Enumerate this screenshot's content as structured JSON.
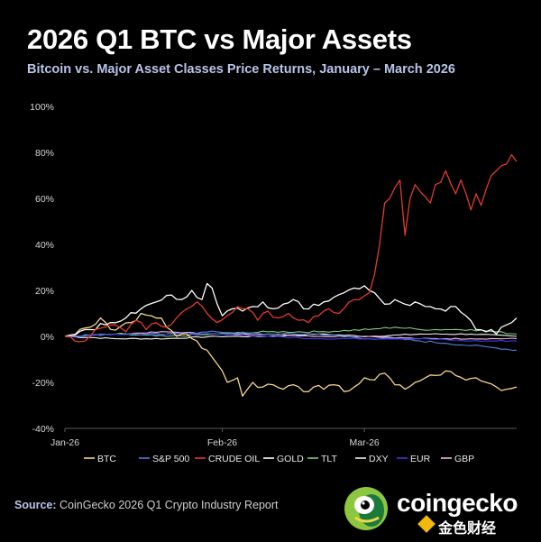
{
  "title": "2026 Q1 BTC vs Major Assets",
  "subtitle": "Bitcoin vs. Major Asset Classes Price Returns, January – March 2026",
  "source_label": "Source:",
  "source_text": "CoinGecko 2026 Q1 Crypto Industry Report",
  "brand": "coingecko",
  "watermark": "金色财经",
  "colors": {
    "background": "#000000",
    "subtitle": "#b8c4e8",
    "BTC": "#f7d58b",
    "S&P 500": "#4f7fd9",
    "CRUDE OIL": "#e23a2e",
    "GOLD": "#ffffff",
    "TLT": "#7ccf7a",
    "DXY": "#f2f2f2",
    "EUR": "#3a3adf",
    "GBP": "#f3b6e8"
  },
  "chart_data": {
    "type": "line",
    "title": "Bitcoin vs. Major Asset Classes Price Returns, January – March 2026",
    "xlabel": "",
    "ylabel": "",
    "x_tick_labels": [
      "Jan-26",
      "Feb-26",
      "Mar-26"
    ],
    "x_tick_index": [
      0,
      31,
      59
    ],
    "y_ticks": [
      100,
      80,
      60,
      40,
      20,
      0,
      -20,
      -40
    ],
    "y_tick_labels": [
      "100%",
      "80%",
      "60%",
      "40%",
      "20%",
      "0%",
      "-20%",
      "-40%"
    ],
    "ylim": [
      -40,
      100
    ],
    "n_points": 90,
    "legend_position": "bottom",
    "series": [
      {
        "name": "BTC",
        "anchors": [
          [
            0,
            0
          ],
          [
            5,
            4
          ],
          [
            7,
            8
          ],
          [
            9,
            3
          ],
          [
            13,
            6
          ],
          [
            15,
            10
          ],
          [
            17,
            9
          ],
          [
            19,
            8
          ],
          [
            22,
            0
          ],
          [
            24,
            1
          ],
          [
            26,
            -2
          ],
          [
            28,
            -6
          ],
          [
            30,
            -12
          ],
          [
            31,
            -15
          ],
          [
            32,
            -20
          ],
          [
            34,
            -18
          ],
          [
            35,
            -26
          ],
          [
            37,
            -20
          ],
          [
            39,
            -22
          ],
          [
            41,
            -21
          ],
          [
            43,
            -23
          ],
          [
            45,
            -21
          ],
          [
            47,
            -24
          ],
          [
            49,
            -22
          ],
          [
            51,
            -23
          ],
          [
            53,
            -21
          ],
          [
            55,
            -24
          ],
          [
            57,
            -22
          ],
          [
            59,
            -18
          ],
          [
            61,
            -19
          ],
          [
            63,
            -16
          ],
          [
            65,
            -21
          ],
          [
            67,
            -23
          ],
          [
            69,
            -20
          ],
          [
            71,
            -18
          ],
          [
            73,
            -17
          ],
          [
            75,
            -15
          ],
          [
            77,
            -17
          ],
          [
            79,
            -19
          ],
          [
            81,
            -18
          ],
          [
            83,
            -20
          ],
          [
            85,
            -22
          ],
          [
            87,
            -23
          ],
          [
            89,
            -22
          ]
        ]
      },
      {
        "name": "S&P 500",
        "anchors": [
          [
            0,
            0
          ],
          [
            10,
            1
          ],
          [
            20,
            1
          ],
          [
            30,
            2
          ],
          [
            40,
            1
          ],
          [
            50,
            1
          ],
          [
            60,
            -1
          ],
          [
            65,
            -1
          ],
          [
            70,
            -2
          ],
          [
            75,
            -3
          ],
          [
            80,
            -4
          ],
          [
            85,
            -5
          ],
          [
            89,
            -6
          ]
        ]
      },
      {
        "name": "CRUDE OIL",
        "anchors": [
          [
            0,
            0
          ],
          [
            4,
            -2
          ],
          [
            6,
            3
          ],
          [
            8,
            4
          ],
          [
            10,
            5
          ],
          [
            12,
            2
          ],
          [
            14,
            7
          ],
          [
            16,
            3
          ],
          [
            18,
            6
          ],
          [
            20,
            4
          ],
          [
            22,
            8
          ],
          [
            24,
            12
          ],
          [
            26,
            15
          ],
          [
            28,
            10
          ],
          [
            30,
            6
          ],
          [
            32,
            9
          ],
          [
            34,
            13
          ],
          [
            36,
            12
          ],
          [
            38,
            7
          ],
          [
            40,
            11
          ],
          [
            42,
            8
          ],
          [
            44,
            10
          ],
          [
            46,
            7
          ],
          [
            48,
            6
          ],
          [
            50,
            9
          ],
          [
            52,
            12
          ],
          [
            54,
            10
          ],
          [
            56,
            15
          ],
          [
            58,
            16
          ],
          [
            60,
            19
          ],
          [
            61,
            27
          ],
          [
            62,
            40
          ],
          [
            63,
            58
          ],
          [
            64,
            60
          ],
          [
            66,
            68
          ],
          [
            67,
            44
          ],
          [
            68,
            60
          ],
          [
            69,
            66
          ],
          [
            70,
            63
          ],
          [
            72,
            58
          ],
          [
            73,
            66
          ],
          [
            74,
            67
          ],
          [
            75,
            72
          ],
          [
            77,
            62
          ],
          [
            78,
            68
          ],
          [
            80,
            55
          ],
          [
            81,
            62
          ],
          [
            82,
            57
          ],
          [
            84,
            70
          ],
          [
            85,
            72
          ],
          [
            87,
            75
          ],
          [
            88,
            79
          ],
          [
            89,
            76
          ]
        ]
      },
      {
        "name": "GOLD",
        "anchors": [
          [
            0,
            0
          ],
          [
            4,
            3
          ],
          [
            8,
            5
          ],
          [
            12,
            8
          ],
          [
            15,
            12
          ],
          [
            18,
            15
          ],
          [
            21,
            18
          ],
          [
            23,
            16
          ],
          [
            25,
            20
          ],
          [
            27,
            16
          ],
          [
            28,
            23
          ],
          [
            29,
            21
          ],
          [
            30,
            14
          ],
          [
            31,
            9
          ],
          [
            33,
            12
          ],
          [
            35,
            11
          ],
          [
            37,
            13
          ],
          [
            39,
            15
          ],
          [
            41,
            12
          ],
          [
            43,
            14
          ],
          [
            45,
            16
          ],
          [
            47,
            12
          ],
          [
            49,
            14
          ],
          [
            51,
            15
          ],
          [
            53,
            17
          ],
          [
            55,
            19
          ],
          [
            57,
            21
          ],
          [
            59,
            22
          ],
          [
            61,
            19
          ],
          [
            63,
            14
          ],
          [
            65,
            16
          ],
          [
            67,
            14
          ],
          [
            69,
            15
          ],
          [
            71,
            13
          ],
          [
            73,
            12
          ],
          [
            75,
            11
          ],
          [
            77,
            13
          ],
          [
            79,
            9
          ],
          [
            81,
            3
          ],
          [
            83,
            2
          ],
          [
            84,
            3
          ],
          [
            85,
            1
          ],
          [
            86,
            4
          ],
          [
            87,
            5
          ],
          [
            88,
            6
          ],
          [
            89,
            8
          ]
        ]
      },
      {
        "name": "TLT",
        "anchors": [
          [
            0,
            0
          ],
          [
            10,
            1
          ],
          [
            20,
            0
          ],
          [
            30,
            1
          ],
          [
            40,
            2
          ],
          [
            50,
            2
          ],
          [
            60,
            3
          ],
          [
            65,
            4
          ],
          [
            70,
            3
          ],
          [
            75,
            3
          ],
          [
            80,
            3
          ],
          [
            85,
            2
          ],
          [
            89,
            1
          ]
        ]
      },
      {
        "name": "DXY",
        "anchors": [
          [
            0,
            0
          ],
          [
            10,
            -1
          ],
          [
            20,
            -1
          ],
          [
            30,
            0
          ],
          [
            40,
            0
          ],
          [
            50,
            1
          ],
          [
            60,
            0
          ],
          [
            70,
            1
          ],
          [
            80,
            1
          ],
          [
            89,
            0
          ]
        ]
      },
      {
        "name": "EUR",
        "anchors": [
          [
            0,
            0
          ],
          [
            10,
            1
          ],
          [
            20,
            1
          ],
          [
            30,
            1
          ],
          [
            40,
            0
          ],
          [
            50,
            -1
          ],
          [
            60,
            -1
          ],
          [
            70,
            -1
          ],
          [
            80,
            -2
          ],
          [
            89,
            -2
          ]
        ]
      },
      {
        "name": "GBP",
        "anchors": [
          [
            0,
            0
          ],
          [
            10,
            1
          ],
          [
            20,
            2
          ],
          [
            30,
            1
          ],
          [
            40,
            1
          ],
          [
            50,
            0
          ],
          [
            60,
            0
          ],
          [
            70,
            -1
          ],
          [
            80,
            -1
          ],
          [
            89,
            -1
          ]
        ]
      }
    ]
  }
}
